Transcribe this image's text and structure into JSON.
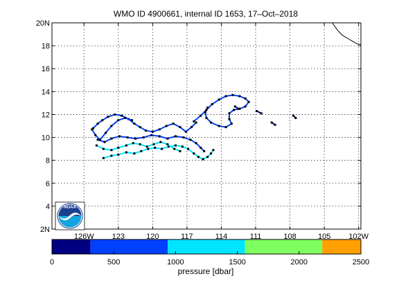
{
  "title": "WMO ID 4900661, internal ID 1653, 17–Oct–2018",
  "logo": {
    "text": "NOAA",
    "colors": {
      "top": "#1a3f8f",
      "bottom": "#14a4e0",
      "ring": "#ffffff",
      "bird": "#ffffff"
    }
  },
  "chart_data": [
    {
      "type": "scatter",
      "title": "WMO ID 4900661, internal ID 1653, 17–Oct–2018",
      "xlim": [
        -128.8,
        -101.8
      ],
      "ylim": [
        2,
        20
      ],
      "grid": true,
      "x_tick_values": [
        -126,
        -123,
        -120,
        -117,
        -114,
        -111,
        -108,
        -105,
        -102
      ],
      "x_tick_labels": [
        "126W",
        "123",
        "120",
        "117",
        "114",
        "111",
        "108",
        "105",
        "102W"
      ],
      "y_tick_values": [
        2,
        4,
        6,
        8,
        10,
        12,
        14,
        16,
        18,
        20
      ],
      "y_tick_labels": [
        "2N",
        "4",
        "6",
        "8",
        "10",
        "12",
        "14",
        "16",
        "18",
        "20N"
      ],
      "coastline": [
        [
          -104.3,
          20.0
        ],
        [
          -103.8,
          19.3
        ],
        [
          -103.4,
          18.9
        ],
        [
          -102.8,
          18.55
        ],
        [
          -102.2,
          18.2
        ],
        [
          -101.8,
          18.1
        ]
      ],
      "tracks": [
        {
          "color": "#00e5ff",
          "points": [
            [
              -124.3,
              8.2
            ],
            [
              -123.6,
              8.4
            ],
            [
              -123.0,
              8.5
            ],
            [
              -122.3,
              8.7
            ],
            [
              -121.6,
              8.6
            ],
            [
              -121.0,
              8.8
            ],
            [
              -120.4,
              9.0
            ],
            [
              -119.8,
              9.1
            ],
            [
              -119.2,
              9.0
            ],
            [
              -118.6,
              9.2
            ],
            [
              -118.0,
              9.3
            ],
            [
              -117.4,
              9.2
            ],
            [
              -116.9,
              9.0
            ],
            [
              -116.4,
              8.6
            ],
            [
              -116.0,
              8.3
            ],
            [
              -115.6,
              8.1
            ],
            [
              -115.2,
              8.3
            ],
            [
              -114.9,
              8.6
            ],
            [
              -114.7,
              8.9
            ]
          ]
        },
        {
          "color": "#00e5ff",
          "points": [
            [
              -124.9,
              9.3
            ],
            [
              -124.3,
              9.0
            ],
            [
              -123.6,
              8.9
            ],
            [
              -123.0,
              9.1
            ],
            [
              -122.3,
              9.3
            ],
            [
              -121.7,
              9.5
            ],
            [
              -121.1,
              9.4
            ],
            [
              -120.5,
              9.2
            ],
            [
              -119.9,
              9.4
            ],
            [
              -119.3,
              9.6
            ],
            [
              -118.7,
              9.4
            ],
            [
              -118.1,
              9.0
            ],
            [
              -117.6,
              8.8
            ]
          ]
        },
        {
          "color": "#0040ff",
          "points": [
            [
              -124.8,
              9.8
            ],
            [
              -124.2,
              9.6
            ],
            [
              -123.6,
              9.9
            ],
            [
              -122.9,
              10.1
            ],
            [
              -122.2,
              10.0
            ],
            [
              -121.5,
              9.9
            ],
            [
              -120.8,
              10.0
            ],
            [
              -120.1,
              10.2
            ],
            [
              -119.4,
              10.1
            ],
            [
              -118.7,
              9.9
            ],
            [
              -118.0,
              10.1
            ],
            [
              -117.3,
              10.0
            ],
            [
              -116.7,
              9.8
            ],
            [
              -116.2,
              9.5
            ],
            [
              -115.8,
              9.1
            ],
            [
              -115.5,
              8.8
            ]
          ]
        },
        {
          "color": "#0040ff",
          "points": [
            [
              -125.2,
              10.8
            ],
            [
              -124.8,
              11.2
            ],
            [
              -124.4,
              11.5
            ],
            [
              -123.9,
              11.8
            ],
            [
              -123.3,
              12.0
            ],
            [
              -122.7,
              11.9
            ],
            [
              -122.1,
              11.6
            ],
            [
              -121.6,
              11.2
            ],
            [
              -121.1,
              10.9
            ],
            [
              -120.6,
              10.6
            ],
            [
              -120.0,
              10.5
            ],
            [
              -119.4,
              10.7
            ],
            [
              -118.8,
              11.0
            ],
            [
              -118.2,
              11.2
            ],
            [
              -117.6,
              10.9
            ],
            [
              -117.1,
              10.5
            ],
            [
              -116.6,
              10.9
            ],
            [
              -116.2,
              11.3
            ]
          ]
        },
        {
          "color": "#0040ff",
          "points": [
            [
              -125.3,
              10.7
            ],
            [
              -125.0,
              10.2
            ],
            [
              -124.6,
              9.8
            ],
            [
              -124.1,
              10.4
            ],
            [
              -123.6,
              11.0
            ],
            [
              -123.0,
              11.5
            ],
            [
              -122.4,
              11.7
            ],
            [
              -121.8,
              11.5
            ]
          ]
        },
        {
          "color": "#0040ff",
          "points": [
            [
              -116.4,
              11.4
            ],
            [
              -115.8,
              11.9
            ],
            [
              -115.3,
              12.4
            ],
            [
              -114.8,
              12.9
            ],
            [
              -114.2,
              13.3
            ],
            [
              -113.6,
              13.6
            ],
            [
              -113.0,
              13.7
            ],
            [
              -112.4,
              13.6
            ],
            [
              -111.9,
              13.4
            ],
            [
              -111.6,
              13.1
            ],
            [
              -111.9,
              12.7
            ],
            [
              -112.4,
              12.5
            ],
            [
              -112.9,
              12.4
            ],
            [
              -113.3,
              12.1
            ],
            [
              -113.3,
              11.6
            ],
            [
              -113.1,
              11.2
            ],
            [
              -113.6,
              10.9
            ],
            [
              -114.2,
              11.0
            ],
            [
              -114.9,
              11.3
            ],
            [
              -115.3,
              11.7
            ],
            [
              -115.4,
              12.2
            ],
            [
              -115.2,
              12.6
            ]
          ]
        },
        {
          "color": "#000080",
          "points": [
            [
              -110.9,
              12.3
            ],
            [
              -110.5,
              12.1
            ]
          ]
        },
        {
          "color": "#000080",
          "points": [
            [
              -109.6,
              11.3
            ],
            [
              -109.3,
              11.1
            ]
          ]
        },
        {
          "color": "#000080",
          "points": [
            [
              -107.7,
              11.9
            ],
            [
              -107.5,
              11.7
            ]
          ]
        },
        {
          "color": "#000080",
          "points": [
            [
              -112.8,
              12.7
            ],
            [
              -112.5,
              12.5
            ]
          ]
        }
      ]
    },
    {
      "type": "heatmap",
      "xlabel": "pressure [dbar]",
      "xlim": [
        0,
        2500
      ],
      "tick_values": [
        0,
        500,
        1000,
        1500,
        2000,
        2500
      ],
      "tick_labels": [
        "0",
        "500",
        "1000",
        "1500",
        "2000",
        "2500"
      ],
      "bands": [
        {
          "from": 0,
          "to": 312,
          "color": "#000080"
        },
        {
          "from": 312,
          "to": 937,
          "color": "#0040ff"
        },
        {
          "from": 937,
          "to": 1562,
          "color": "#00e5ff"
        },
        {
          "from": 1562,
          "to": 2187,
          "color": "#80ff60"
        },
        {
          "from": 2187,
          "to": 2500,
          "color": "#ffa000"
        }
      ]
    }
  ]
}
